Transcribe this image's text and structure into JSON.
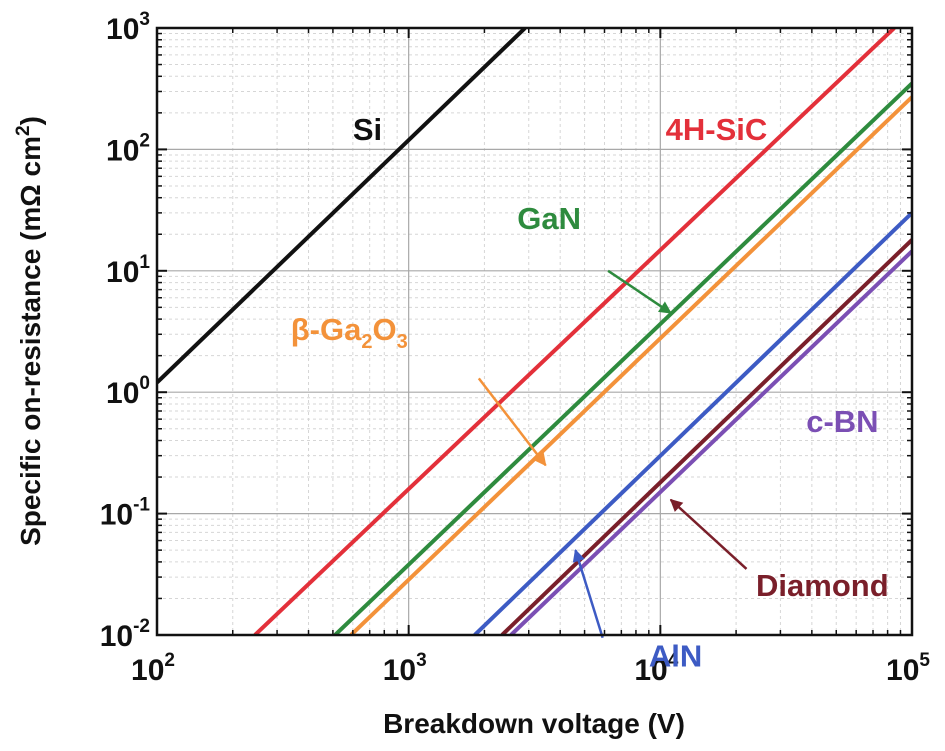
{
  "chart_data": {
    "type": "line",
    "xlabel": "Breakdown voltage (V)",
    "ylabel": "Specific on-resistance (mΩ cm²)",
    "ylabel_main": "Specific on-resistance (mΩ cm",
    "ylabel_sup": "2",
    "ylabel_close": ")",
    "xscale": "log",
    "yscale": "log",
    "xlim": [
      100,
      100000
    ],
    "ylim": [
      0.01,
      1000
    ],
    "grid": true,
    "x_ticks": [
      {
        "base": "10",
        "exp": "2"
      },
      {
        "base": "10",
        "exp": "3"
      },
      {
        "base": "10",
        "exp": "4"
      },
      {
        "base": "10",
        "exp": "5"
      }
    ],
    "y_ticks": [
      {
        "base": "10",
        "exp": "-2"
      },
      {
        "base": "10",
        "exp": "-1"
      },
      {
        "base": "10",
        "exp": "0"
      },
      {
        "base": "10",
        "exp": "1"
      },
      {
        "base": "10",
        "exp": "2"
      },
      {
        "base": "10",
        "exp": "3"
      }
    ],
    "series": [
      {
        "name": "Si",
        "color": "#111111",
        "x": [
          100,
          2900
        ],
        "y": [
          1.2,
          1000
        ]
      },
      {
        "name": "4H-SiC",
        "color": "#e3303a",
        "x": [
          245,
          85000
        ],
        "y": [
          0.01,
          1000
        ]
      },
      {
        "name": "GaN",
        "color": "#2e8b3e",
        "x": [
          510,
          100000
        ],
        "y": [
          0.01,
          350
        ]
      },
      {
        "name": "β-Ga2O3",
        "name_parts": [
          "β-Ga",
          "2",
          "O",
          "3"
        ],
        "color": "#f3923a",
        "x": [
          590,
          100000
        ],
        "y": [
          0.01,
          270
        ]
      },
      {
        "name": "AlN",
        "color": "#3d5bc4",
        "x": [
          1830,
          100000
        ],
        "y": [
          0.01,
          30
        ]
      },
      {
        "name": "Diamond",
        "color": "#7a1f2a",
        "x": [
          2350,
          100000
        ],
        "y": [
          0.01,
          18
        ]
      },
      {
        "name": "c-BN",
        "color": "#7b4fb4",
        "x": [
          2550,
          100000
        ],
        "y": [
          0.01,
          14.5
        ]
      }
    ],
    "annotations": [
      {
        "series": "Si",
        "label_pos": [
          600,
          120
        ]
      },
      {
        "series": "4H-SiC",
        "label_pos": [
          10500,
          120
        ]
      },
      {
        "series": "GaN",
        "label_pos": [
          2700,
          22
        ],
        "arrow_from": [
          6200,
          10
        ],
        "arrow_to": [
          11000,
          4.5
        ]
      },
      {
        "series": "β-Ga2O3",
        "label_pos": [
          340,
          2.7
        ],
        "arrow_from": [
          1900,
          1.3
        ],
        "arrow_to": [
          3500,
          0.25
        ]
      },
      {
        "series": "AlN",
        "label_pos": [
          9000,
          0.0055
        ],
        "arrow_from": [
          5900,
          0.0095
        ],
        "arrow_to": [
          4600,
          0.05
        ]
      },
      {
        "series": "Diamond",
        "label_pos": [
          24000,
          0.021
        ],
        "arrow_from": [
          22000,
          0.035
        ],
        "arrow_to": [
          11000,
          0.13
        ]
      },
      {
        "series": "c-BN",
        "label_pos": [
          38000,
          0.47
        ]
      }
    ]
  }
}
